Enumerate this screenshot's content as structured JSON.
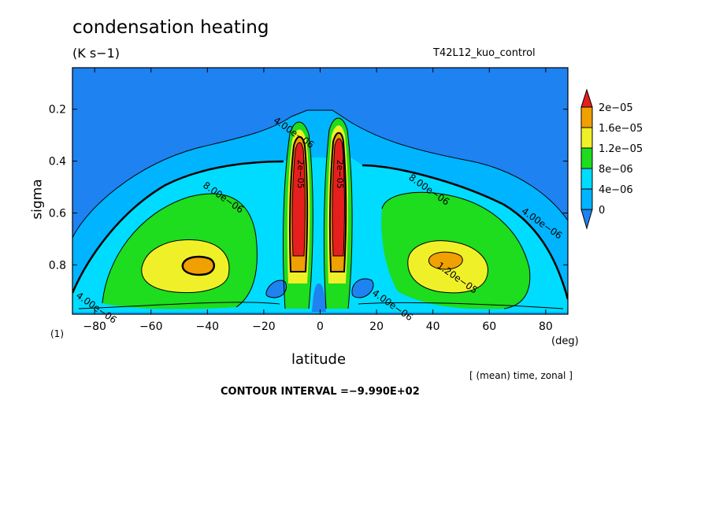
{
  "header": {
    "title": "condensation heating",
    "units": "(K s−1)",
    "run": "T42L12_kuo_control"
  },
  "footer": {
    "level_note": "(1)",
    "x_unit": "(deg)",
    "average_note": "[ (mean) time, zonal ]",
    "contour_interval": "CONTOUR INTERVAL =−9.990E+02"
  },
  "chart_data": {
    "type": "contour",
    "title": "condensation heating",
    "xlabel": "latitude",
    "ylabel": "sigma",
    "xlim": [
      -87.86,
      87.86
    ],
    "ylim": [
      0.04,
      0.99
    ],
    "y_inverted": true,
    "x_ticks": [
      -80,
      -60,
      -40,
      -20,
      0,
      20,
      40,
      60,
      80
    ],
    "y_ticks": [
      0.2,
      0.4,
      0.6,
      0.8
    ],
    "colorbar": {
      "levels": [
        0,
        4e-06,
        8e-06,
        1.2e-05,
        1.6e-05,
        2e-05
      ],
      "labels": [
        "0",
        "4e−06",
        "8e−06",
        "1.2e−05",
        "1.6e−05",
        "2e−05"
      ],
      "colors": [
        "#1e82f0",
        "#00b4ff",
        "#00dcff",
        "#1edc1e",
        "#f0f028",
        "#f0a000",
        "#e61e1e"
      ]
    },
    "contour_labels": [
      {
        "text": "4.00e−06",
        "x": -10,
        "y": 0.3
      },
      {
        "text": "8.00e−06",
        "x": -35,
        "y": 0.55
      },
      {
        "text": "8.00e−06",
        "x": 38,
        "y": 0.52
      },
      {
        "text": "4.00e−06",
        "x": 78,
        "y": 0.65
      },
      {
        "text": "1.20e−05",
        "x": 48,
        "y": 0.86
      },
      {
        "text": "4.00e−06",
        "x": -80,
        "y": 0.975
      },
      {
        "text": "4.00e−06",
        "x": 25,
        "y": 0.965
      }
    ],
    "features": [
      {
        "name": "subtropical maximum south",
        "x": -43,
        "y": 0.8,
        "value": 1.6e-05
      },
      {
        "name": "subtropical maximum north",
        "x": 45,
        "y": 0.8,
        "value": 1.6e-05
      },
      {
        "name": "equatorial tower south",
        "x": -7,
        "y": 0.4,
        "value": 2e-05
      },
      {
        "name": "equatorial tower north",
        "x": 6,
        "y": 0.4,
        "value": 2e-05
      }
    ]
  }
}
